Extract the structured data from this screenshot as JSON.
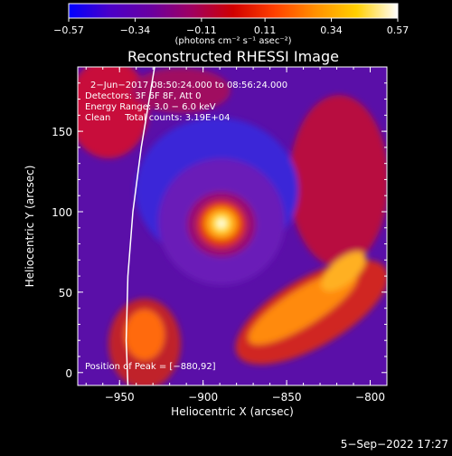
{
  "colorbar": {
    "ticks": [
      -0.57,
      -0.34,
      -0.11,
      0.11,
      0.34,
      0.57
    ],
    "tick_labels": [
      "−0.57",
      "−0.34",
      "−0.11",
      "0.11",
      "0.34",
      "0.57"
    ],
    "unit_label": "(photons cm⁻² s⁻¹ asec⁻²)",
    "stops": [
      "#0000ff",
      "#4b00c8",
      "#6a00a0",
      "#a00060",
      "#d00000",
      "#ff4000",
      "#ff9000",
      "#ffd000",
      "#ffffff"
    ]
  },
  "annotations": {
    "time_range": "2−Jun−2017 08:50:24.000 to 08:56:24.000",
    "detectors": "Detectors: 3F 6F 8F, Att 0",
    "energy": "Energy Range: 3.0 − 6.0 keV",
    "clean": "Clean     Total counts: 3.19E+04",
    "peak": "Position of Peak = [−880,92]"
  },
  "footer": {
    "timestamp": "5−Sep−2022 17:27"
  },
  "chart_data": {
    "type": "heatmap",
    "title": "Reconstructed RHESSI Image",
    "xlabel": "Heliocentric X (arcsec)",
    "ylabel": "Heliocentric Y (arcsec)",
    "xlim": [
      -975,
      -790
    ],
    "ylim": [
      -8,
      190
    ],
    "xticks": [
      -950,
      -900,
      -850,
      -800
    ],
    "xtick_labels": [
      "−950",
      "−900",
      "−850",
      "−800"
    ],
    "yticks": [
      0,
      50,
      100,
      150
    ],
    "ytick_labels": [
      "0",
      "50",
      "100",
      "150"
    ],
    "clim": [
      -0.57,
      0.57
    ],
    "peak": {
      "x": -880,
      "y": 92
    },
    "limb_points": [
      [
        -945,
        -8
      ],
      [
        -946,
        20
      ],
      [
        -945,
        60
      ],
      [
        -942,
        100
      ],
      [
        -937,
        140
      ],
      [
        -929,
        190
      ]
    ]
  }
}
